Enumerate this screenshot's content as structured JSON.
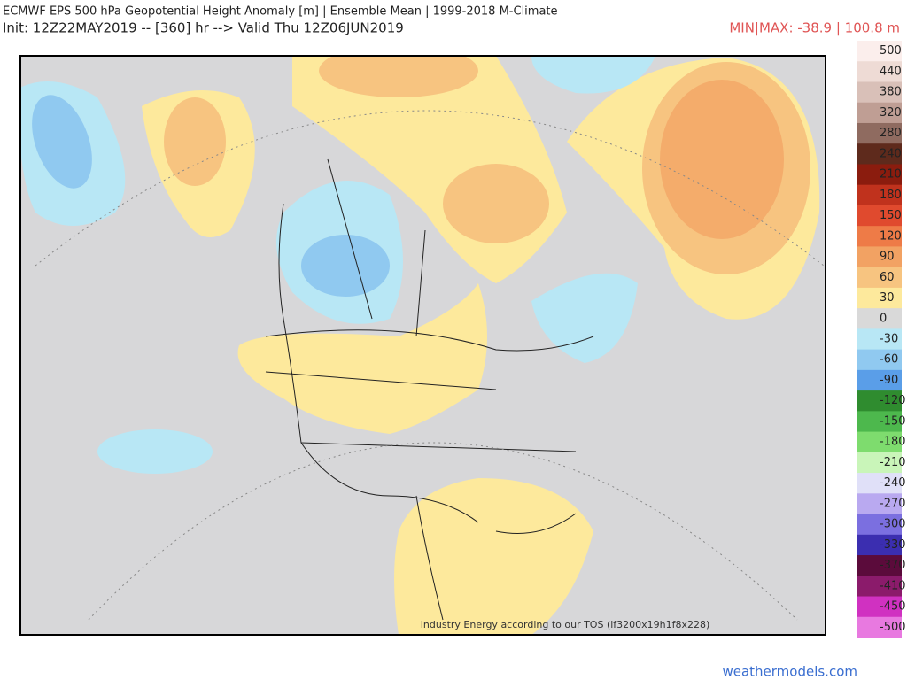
{
  "header": {
    "title": "ECMWF EPS 500 hPa Geopotential Height Anomaly [m] | Ensemble Mean | 1999-2018 M-Climate",
    "subtitle": "Init: 12Z22MAY2019 -- [360] hr --> Valid Thu 12Z06JUN2019",
    "minmax": "MIN|MAX: -38.9 | 100.8 m"
  },
  "colorbar": [
    {
      "label": "500",
      "color": "#fbeeec"
    },
    {
      "label": "440",
      "color": "#eedbd5"
    },
    {
      "label": "380",
      "color": "#d9c0b8"
    },
    {
      "label": "320",
      "color": "#bf9e94"
    },
    {
      "label": "280",
      "color": "#8f6b60"
    },
    {
      "label": "240",
      "color": "#5e2a1c"
    },
    {
      "label": "210",
      "color": "#8b1c0e"
    },
    {
      "label": "180",
      "color": "#c0321d"
    },
    {
      "label": "150",
      "color": "#e04a2e"
    },
    {
      "label": "120",
      "color": "#ee7b47"
    },
    {
      "label": "90",
      "color": "#f2a263"
    },
    {
      "label": "60",
      "color": "#f7c480"
    },
    {
      "label": "30",
      "color": "#fde99c"
    },
    {
      "label": "0",
      "color": "#d9d9d9"
    },
    {
      "label": "-30",
      "color": "#b8e7f5"
    },
    {
      "label": "-60",
      "color": "#90c9f0"
    },
    {
      "label": "-90",
      "color": "#5a9ee8"
    },
    {
      "label": "-120",
      "color": "#2f8c2f"
    },
    {
      "label": "-150",
      "color": "#4db84d"
    },
    {
      "label": "-180",
      "color": "#7edc6e"
    },
    {
      "label": "-210",
      "color": "#c9f5b9"
    },
    {
      "label": "-240",
      "color": "#e0e0f8"
    },
    {
      "label": "-270",
      "color": "#b9a9f0"
    },
    {
      "label": "-300",
      "color": "#7b6fe0"
    },
    {
      "label": "-330",
      "color": "#3b2eb0"
    },
    {
      "label": "-370",
      "color": "#5b0b3b"
    },
    {
      "label": "-410",
      "color": "#8b1b6b"
    },
    {
      "label": "-450",
      "color": "#d031c1"
    },
    {
      "label": "-500",
      "color": "#e879e0"
    }
  ],
  "watermark": "Industry Energy according to our TOS (if3200x19h1f8x228)",
  "footer": "weathermodels.com"
}
